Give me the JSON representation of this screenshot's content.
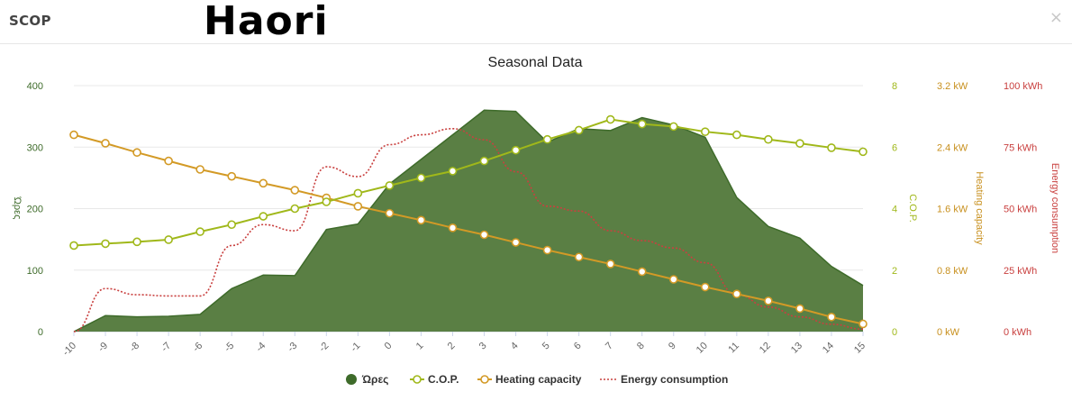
{
  "header": {
    "app_title": "SCOP",
    "brand": "Haori",
    "close_symbol": "×"
  },
  "colors": {
    "hours": "#5a7f44",
    "hours_line": "#3e6b2a",
    "cop": "#a0b81a",
    "heating": "#d39a26",
    "energy": "#c9403f",
    "grid": "#e8e8e8"
  },
  "chart_data": {
    "type": "area",
    "title": "Seasonal Data",
    "x": [
      -10,
      -9,
      -8,
      -7,
      -6,
      -5,
      -4,
      -3,
      -2,
      -1,
      0,
      1,
      2,
      3,
      4,
      5,
      6,
      7,
      8,
      9,
      10,
      11,
      12,
      13,
      14,
      15
    ],
    "series": [
      {
        "name": "Ώρες",
        "axis": "hours",
        "type": "area",
        "values": [
          0,
          26,
          24,
          25,
          28,
          70,
          92,
          91,
          166,
          175,
          240,
          280,
          320,
          360,
          358,
          308,
          330,
          327,
          348,
          336,
          316,
          218,
          171,
          152,
          106,
          75
        ]
      },
      {
        "name": "C.O.P.",
        "axis": "cop",
        "type": "line",
        "values": [
          2.8,
          2.86,
          2.92,
          2.99,
          3.25,
          3.48,
          3.75,
          4.0,
          4.22,
          4.5,
          4.75,
          5.0,
          5.22,
          5.55,
          5.9,
          6.25,
          6.55,
          6.9,
          6.75,
          6.67,
          6.5,
          6.4,
          6.25,
          6.12,
          5.98,
          5.85
        ]
      },
      {
        "name": "Heating capacity",
        "axis": "heating",
        "type": "line",
        "values": [
          2.56,
          2.45,
          2.33,
          2.22,
          2.11,
          2.02,
          1.93,
          1.84,
          1.74,
          1.63,
          1.54,
          1.45,
          1.35,
          1.26,
          1.16,
          1.06,
          0.97,
          0.88,
          0.78,
          0.68,
          0.58,
          0.49,
          0.4,
          0.3,
          0.19,
          0.1
        ]
      },
      {
        "name": "Energy consumption",
        "axis": "energy",
        "type": "line",
        "values": [
          0,
          17.5,
          15,
          14.5,
          14.5,
          35,
          43.5,
          41,
          67,
          63,
          76,
          80,
          82.5,
          78,
          65,
          51,
          49,
          41,
          37,
          34,
          28,
          15,
          10,
          6,
          3,
          1
        ]
      }
    ],
    "axes": {
      "hours": {
        "label": "Ώρες",
        "min": 0,
        "max": 400,
        "ticks": [
          "0",
          "100",
          "200",
          "300",
          "400"
        ]
      },
      "cop": {
        "label": "C.O.P.",
        "min": 0,
        "max": 8,
        "ticks": [
          "0",
          "2",
          "4",
          "6",
          "8"
        ]
      },
      "heating": {
        "label": "Heating capacity",
        "min": 0,
        "max": 3.2,
        "ticks": [
          "0 kW",
          "0.8 kW",
          "1.6 kW",
          "2.4 kW",
          "3.2 kW"
        ]
      },
      "energy": {
        "label": "Energy consumption",
        "min": 0,
        "max": 100,
        "ticks": [
          "0 kWh",
          "25 kWh",
          "50 kWh",
          "75 kWh",
          "100 kWh"
        ]
      }
    },
    "grid": true,
    "legend_position": "bottom"
  }
}
